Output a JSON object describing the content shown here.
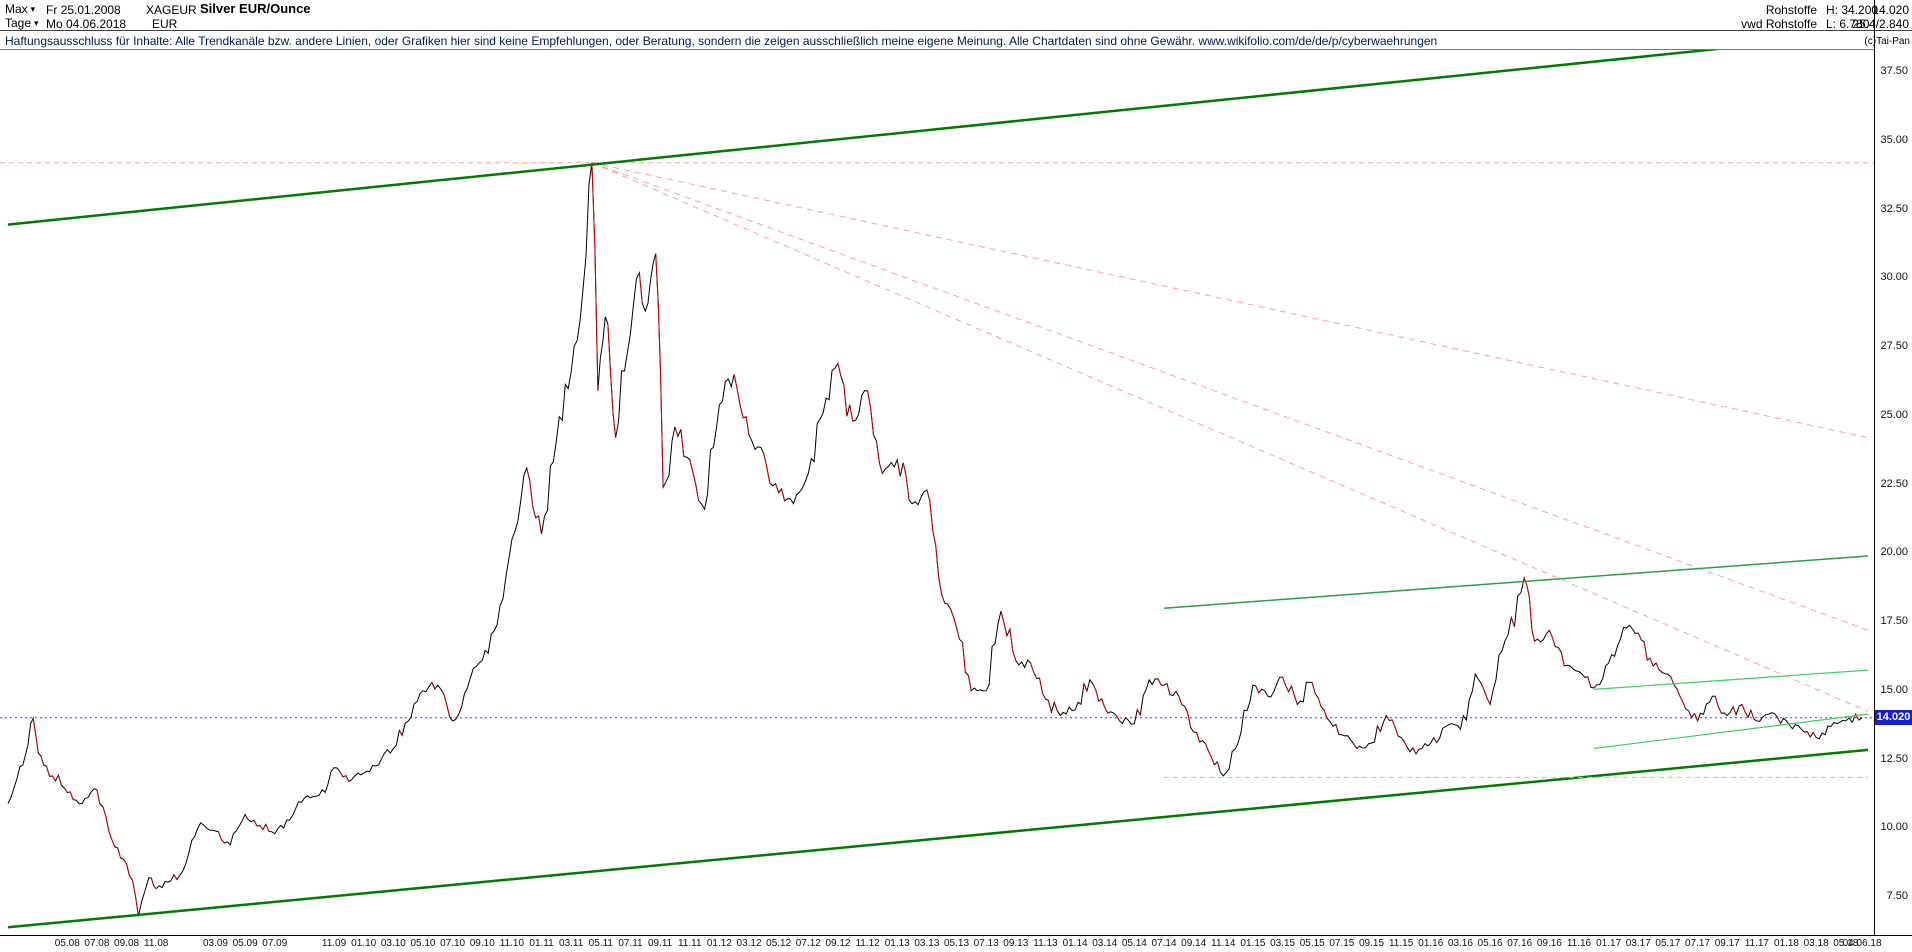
{
  "header": {
    "range_dropdown_label": "Max",
    "period_dropdown_label": "Tage",
    "date_start": "Fr 25.01.2008",
    "date_end": "Mo 04.06.2018",
    "symbol": "XAGEUR",
    "currency": "EUR",
    "title": "Silver EUR/Ounce",
    "category": "Rohstoffe",
    "feed": "vwd Rohstoffe",
    "high": "H: 34.200",
    "low": "L: 6.780",
    "last_price": "14.020",
    "extra_info": "25.4/2.840",
    "copyright": "(c)Tai-Pan"
  },
  "disclaimer": {
    "text": "Haftungsausschluss für Inhalte: Alle Trendkanäle bzw. andere Linien, oder Grafiken hier sind keine Empfehlungen, oder Beratung, sondern die zeigen ausschließlich meine eigene Meinung. Alle Chartdaten sind ohne Gewähr.  ",
    "link": "www.wikifolio.com/de/de/p/cyberwaehrungen"
  },
  "chart_data": {
    "type": "line",
    "title": "Silver EUR/Ounce",
    "instrument": "XAGEUR",
    "currency": "EUR",
    "last_price": 14.02,
    "high": 34.2,
    "low": 6.78,
    "grid": false,
    "y_axis": {
      "side": "right",
      "range": [
        6.1,
        38.3
      ],
      "ticks": [
        37.5,
        35.0,
        32.5,
        30.0,
        27.5,
        25.0,
        22.5,
        20.0,
        17.5,
        15.0,
        12.5,
        10.0,
        7.5
      ]
    },
    "x_axis": {
      "unit": "months since 2008-01",
      "start_label": "25.01.2008",
      "end_label": "04.06.2018",
      "ticks": [
        {
          "label": "05.08",
          "t": 4
        },
        {
          "label": "07.08",
          "t": 6
        },
        {
          "label": "09.08",
          "t": 8
        },
        {
          "label": "11.08",
          "t": 10
        },
        {
          "label": "03.09",
          "t": 14
        },
        {
          "label": "05.09",
          "t": 16
        },
        {
          "label": "07.09",
          "t": 18
        },
        {
          "label": "11.09",
          "t": 22
        },
        {
          "label": "01.10",
          "t": 24
        },
        {
          "label": "03.10",
          "t": 26
        },
        {
          "label": "05.10",
          "t": 28
        },
        {
          "label": "07.10",
          "t": 30
        },
        {
          "label": "09.10",
          "t": 32
        },
        {
          "label": "11.10",
          "t": 34
        },
        {
          "label": "01.11",
          "t": 36
        },
        {
          "label": "03.11",
          "t": 38
        },
        {
          "label": "05.11",
          "t": 40
        },
        {
          "label": "07.11",
          "t": 42
        },
        {
          "label": "09.11",
          "t": 44
        },
        {
          "label": "11.11",
          "t": 46
        },
        {
          "label": "01.12",
          "t": 48
        },
        {
          "label": "03.12",
          "t": 50
        },
        {
          "label": "05.12",
          "t": 52
        },
        {
          "label": "07.12",
          "t": 54
        },
        {
          "label": "09.12",
          "t": 56
        },
        {
          "label": "11.12",
          "t": 58
        },
        {
          "label": "01.13",
          "t": 60
        },
        {
          "label": "03.13",
          "t": 62
        },
        {
          "label": "05.13",
          "t": 64
        },
        {
          "label": "07.13",
          "t": 66
        },
        {
          "label": "09.13",
          "t": 68
        },
        {
          "label": "11.13",
          "t": 70
        },
        {
          "label": "01.14",
          "t": 72
        },
        {
          "label": "03.14",
          "t": 74
        },
        {
          "label": "05.14",
          "t": 76
        },
        {
          "label": "07.14",
          "t": 78
        },
        {
          "label": "09.14",
          "t": 80
        },
        {
          "label": "11.14",
          "t": 82
        },
        {
          "label": "01.15",
          "t": 84
        },
        {
          "label": "03.15",
          "t": 86
        },
        {
          "label": "05.15",
          "t": 88
        },
        {
          "label": "07.15",
          "t": 90
        },
        {
          "label": "09.15",
          "t": 92
        },
        {
          "label": "11.15",
          "t": 94
        },
        {
          "label": "01.16",
          "t": 96
        },
        {
          "label": "03.16",
          "t": 98
        },
        {
          "label": "05.16",
          "t": 100
        },
        {
          "label": "07.16",
          "t": 102
        },
        {
          "label": "09.16",
          "t": 104
        },
        {
          "label": "11.16",
          "t": 106
        },
        {
          "label": "01.17",
          "t": 108
        },
        {
          "label": "03.17",
          "t": 110
        },
        {
          "label": "05.17",
          "t": 112
        },
        {
          "label": "07.17",
          "t": 114
        },
        {
          "label": "09.17",
          "t": 116
        },
        {
          "label": "11.17",
          "t": 118
        },
        {
          "label": "01.18",
          "t": 120
        },
        {
          "label": "03.18",
          "t": 122
        },
        {
          "label": "05.18",
          "t": 124
        },
        {
          "label": "04.06.18",
          "t": 125.1
        }
      ]
    },
    "series": [
      {
        "name": "XAGEUR daily close (EUR per ounce)",
        "color": "#000000",
        "down_color": "#cc0000",
        "points": [
          [
            0,
            10.9
          ],
          [
            1,
            12.3
          ],
          [
            1.7,
            14.0
          ],
          [
            2.4,
            12.3
          ],
          [
            3,
            11.9
          ],
          [
            4,
            11.3
          ],
          [
            5,
            10.9
          ],
          [
            6,
            11.4
          ],
          [
            7,
            9.6
          ],
          [
            8,
            8.7
          ],
          [
            8.8,
            6.8
          ],
          [
            9.5,
            8.2
          ],
          [
            10,
            7.8
          ],
          [
            11,
            8.1
          ],
          [
            12,
            8.7
          ],
          [
            13,
            10.2
          ],
          [
            14,
            9.9
          ],
          [
            15,
            9.4
          ],
          [
            16,
            10.5
          ],
          [
            17,
            10.1
          ],
          [
            18,
            9.8
          ],
          [
            19,
            10.3
          ],
          [
            20,
            11.1
          ],
          [
            21,
            11.2
          ],
          [
            22,
            12.2
          ],
          [
            23,
            11.7
          ],
          [
            24,
            12.0
          ],
          [
            25,
            12.3
          ],
          [
            26,
            12.9
          ],
          [
            27,
            13.9
          ],
          [
            28,
            15.0
          ],
          [
            29,
            15.2
          ],
          [
            30,
            13.9
          ],
          [
            31,
            15.1
          ],
          [
            32,
            16.1
          ],
          [
            33,
            17.4
          ],
          [
            34,
            20.5
          ],
          [
            35,
            23.1
          ],
          [
            36,
            20.7
          ],
          [
            37,
            24.1
          ],
          [
            38,
            26.6
          ],
          [
            39,
            30.8
          ],
          [
            39.4,
            34.2
          ],
          [
            39.8,
            25.9
          ],
          [
            40.3,
            28.6
          ],
          [
            41,
            24.2
          ],
          [
            42,
            28.0
          ],
          [
            42.6,
            30.2
          ],
          [
            43,
            28.8
          ],
          [
            43.7,
            30.9
          ],
          [
            44.2,
            22.4
          ],
          [
            45,
            24.6
          ],
          [
            46,
            23.4
          ],
          [
            47,
            21.6
          ],
          [
            48,
            25.4
          ],
          [
            49,
            26.5
          ],
          [
            50,
            24.3
          ],
          [
            51,
            23.6
          ],
          [
            52,
            22.2
          ],
          [
            53,
            21.8
          ],
          [
            54,
            22.9
          ],
          [
            55,
            25.1
          ],
          [
            56,
            26.9
          ],
          [
            57,
            24.8
          ],
          [
            58,
            25.9
          ],
          [
            59,
            22.9
          ],
          [
            60,
            23.4
          ],
          [
            61,
            21.8
          ],
          [
            62,
            22.3
          ],
          [
            63,
            18.5
          ],
          [
            64,
            17.3
          ],
          [
            65,
            15.0
          ],
          [
            66,
            15.0
          ],
          [
            67,
            17.9
          ],
          [
            68,
            16.1
          ],
          [
            69,
            16.0
          ],
          [
            70,
            14.7
          ],
          [
            71,
            14.1
          ],
          [
            72,
            14.3
          ],
          [
            73,
            15.4
          ],
          [
            74,
            14.4
          ],
          [
            75,
            13.9
          ],
          [
            76,
            13.8
          ],
          [
            77,
            15.4
          ],
          [
            78,
            15.2
          ],
          [
            79,
            14.8
          ],
          [
            80,
            13.5
          ],
          [
            81,
            12.8
          ],
          [
            82,
            11.9
          ],
          [
            83,
            13.1
          ],
          [
            84,
            15.2
          ],
          [
            85,
            14.8
          ],
          [
            86,
            15.5
          ],
          [
            87,
            14.5
          ],
          [
            88,
            15.3
          ],
          [
            89,
            14.0
          ],
          [
            90,
            13.4
          ],
          [
            91,
            12.9
          ],
          [
            92,
            13.1
          ],
          [
            93,
            14.1
          ],
          [
            94,
            13.3
          ],
          [
            95,
            12.7
          ],
          [
            96,
            13.1
          ],
          [
            97,
            13.7
          ],
          [
            98,
            13.6
          ],
          [
            99,
            15.6
          ],
          [
            100,
            14.5
          ],
          [
            101,
            16.8
          ],
          [
            102.3,
            19.1
          ],
          [
            103,
            16.8
          ],
          [
            104,
            17.2
          ],
          [
            105,
            15.9
          ],
          [
            106,
            15.7
          ],
          [
            107,
            15.1
          ],
          [
            108,
            16.0
          ],
          [
            109,
            17.3
          ],
          [
            110,
            17.1
          ],
          [
            111,
            15.9
          ],
          [
            112,
            15.6
          ],
          [
            113,
            14.6
          ],
          [
            114,
            13.9
          ],
          [
            115,
            14.8
          ],
          [
            116,
            14.1
          ],
          [
            117,
            14.5
          ],
          [
            118,
            13.9
          ],
          [
            119,
            14.2
          ],
          [
            120,
            13.9
          ],
          [
            121,
            13.6
          ],
          [
            122,
            13.3
          ],
          [
            123,
            13.7
          ],
          [
            124,
            13.9
          ],
          [
            125.1,
            14.02
          ]
        ]
      }
    ],
    "h_lines": [
      {
        "name": "all-time-high-line",
        "price": 34.2,
        "color": "#ffa0a0",
        "dash": "5 4"
      },
      {
        "name": "last-price-line",
        "price": 14.02,
        "color": "#3c3cff",
        "dash": "2 3"
      }
    ],
    "fan_lines": {
      "name": "downtrend-fan-from-2011-peak",
      "origin": [
        39.4,
        34.2
      ],
      "color": "#ff9e9e",
      "dash": "6 5",
      "ends": [
        [
          125.5,
          24.2
        ],
        [
          125.5,
          17.2
        ],
        [
          125.5,
          14.25
        ]
      ]
    },
    "trend_lines": [
      {
        "name": "primary-channel-upper",
        "t1": 0,
        "p1": 31.95,
        "t2": 125.5,
        "p2": 38.9,
        "color": "#007a00",
        "width": 2.5,
        "dash": ""
      },
      {
        "name": "primary-channel-lower",
        "t1": 0,
        "p1": 6.4,
        "t2": 125.5,
        "p2": 12.85,
        "color": "#007a00",
        "width": 2.5,
        "dash": ""
      },
      {
        "name": "secondary-resistance-line",
        "t1": 78,
        "p1": 18.0,
        "t2": 125.5,
        "p2": 19.9,
        "color": "#2f9e44",
        "width": 1.5,
        "dash": ""
      },
      {
        "name": "minor-channel-upper",
        "t1": 107,
        "p1": 15.05,
        "t2": 125.5,
        "p2": 15.75,
        "color": "#3ad05c",
        "width": 1.2,
        "dash": ""
      },
      {
        "name": "minor-channel-lower",
        "t1": 107,
        "p1": 12.9,
        "t2": 125.5,
        "p2": 14.15,
        "color": "#3ad05c",
        "width": 1.2,
        "dash": ""
      },
      {
        "name": "horizontal-support-line",
        "t1": 78,
        "p1": 11.85,
        "t2": 125.5,
        "p2": 11.85,
        "color": "#8fe08f",
        "width": 1,
        "dash": "5 4"
      }
    ]
  }
}
